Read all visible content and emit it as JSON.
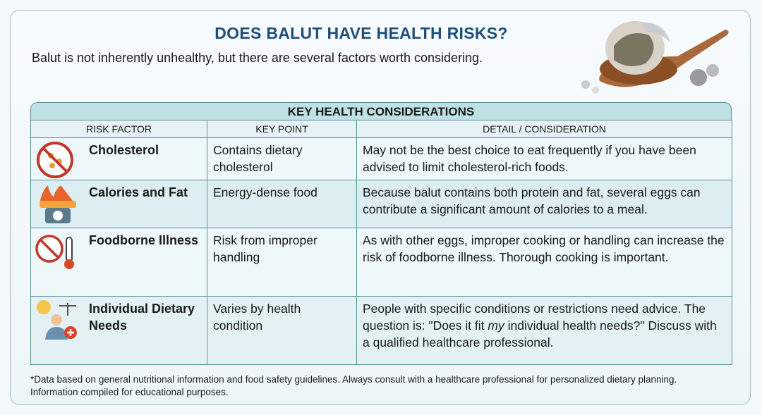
{
  "header": {
    "title": "DOES BALUT HAVE HEALTH RISKS?",
    "subtitle": "Balut is not inherently unhealthy, but there are several factors worth considering."
  },
  "table": {
    "title": "KEY HEALTH CONSIDERATIONS",
    "columns": [
      "RISK FACTOR",
      "KEY POINT",
      "DETAIL / CONSIDERATION"
    ],
    "rows": [
      {
        "factor": "Cholesterol",
        "key_point": "Contains dietary cholesterol",
        "detail": [
          "May not be the best choice to eat frequently if you have been advised to limit cholesterol-rich foods."
        ]
      },
      {
        "factor": "Calories and Fat",
        "key_point": "Energy-dense food",
        "detail": [
          "Because balut contains both protein and fat, several eggs can contribute a significant amount of calories to a meal."
        ]
      },
      {
        "factor": "Foodborne Illness",
        "key_point": "Risk from improper handling",
        "detail": [
          "As with other eggs, improper cooking or handling can increase the risk of foodborne illness. Thorough cooking is important."
        ]
      },
      {
        "factor": "Individual Dietary Needs",
        "key_point": "Varies by health condition",
        "detail": [
          "People with specific conditions or restrictions need advice. The question is: \"Does it fit ",
          "my",
          " individual health needs?\" Discuss with a qualified healthcare professional."
        ]
      }
    ]
  },
  "footnote": [
    "*Data based on general nutritional information and food safety guidelines. Always consult with a healthcare professional for personalized dietary planning.",
    "Information compiled for educational purposes."
  ]
}
